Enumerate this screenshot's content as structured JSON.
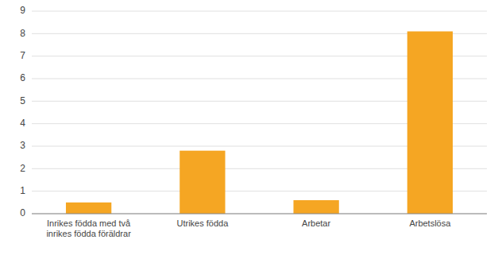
{
  "chart_data": {
    "type": "bar",
    "categories": [
      "Inrikes födda med två\ninrikes födda föräldrar",
      "Utrikes födda",
      "Arbetar",
      "Arbetslösa"
    ],
    "values": [
      0.5,
      2.8,
      0.6,
      8.1
    ],
    "color": "#F5A623",
    "ylim": [
      0,
      9
    ],
    "yticks": [
      0,
      1,
      2,
      3,
      4,
      5,
      6,
      7,
      8,
      9
    ],
    "grid": true
  }
}
